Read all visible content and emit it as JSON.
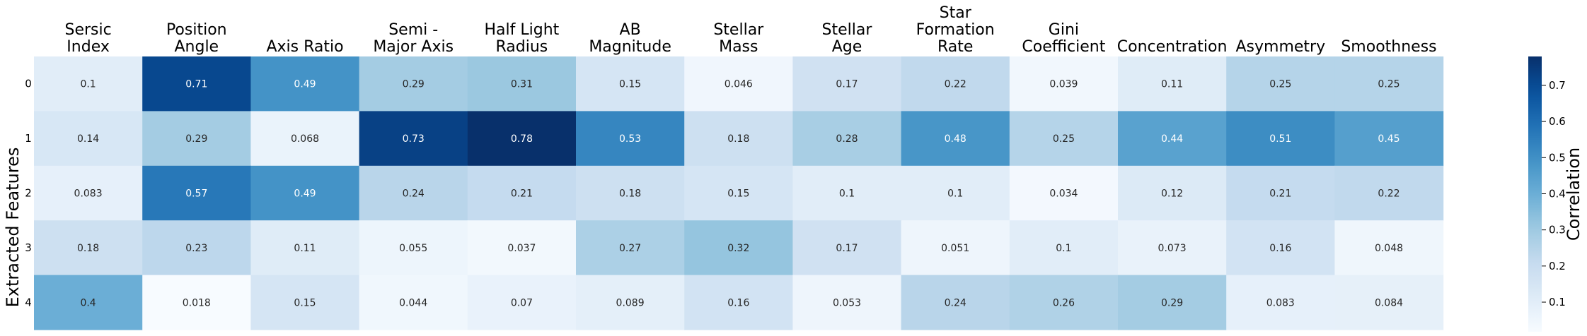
{
  "chart_data": {
    "type": "heatmap",
    "title": "",
    "ylabel": "Extracted Features",
    "xlabel": "",
    "columns": [
      "Sersic Index",
      "Position Angle",
      "Axis Ratio",
      "Semi - Major Axis",
      "Half Light Radius",
      "AB Magnitude",
      "Stellar Mass",
      "Stellar Age",
      "Star Formation Rate",
      "Gini Coefficient",
      "Concentration",
      "Asymmetry",
      "Smoothness"
    ],
    "column_label_lines": [
      [
        "Sersic",
        "Index"
      ],
      [
        "Position",
        "Angle"
      ],
      [
        "Axis Ratio"
      ],
      [
        "Semi -",
        "Major Axis"
      ],
      [
        "Half Light",
        "Radius"
      ],
      [
        "AB",
        "Magnitude"
      ],
      [
        "Stellar",
        "Mass"
      ],
      [
        "Stellar",
        "Age"
      ],
      [
        "Star",
        "Formation",
        "Rate"
      ],
      [
        "Gini",
        "Coefficient"
      ],
      [
        "Concentration"
      ],
      [
        "Asymmetry"
      ],
      [
        "Smoothness"
      ]
    ],
    "rows": [
      "0",
      "1",
      "2",
      "3",
      "4"
    ],
    "values": [
      [
        0.1,
        0.71,
        0.49,
        0.29,
        0.31,
        0.15,
        0.046,
        0.17,
        0.22,
        0.039,
        0.11,
        0.25,
        0.25
      ],
      [
        0.14,
        0.29,
        0.068,
        0.73,
        0.78,
        0.53,
        0.18,
        0.28,
        0.48,
        0.25,
        0.44,
        0.51,
        0.45
      ],
      [
        0.083,
        0.57,
        0.49,
        0.24,
        0.21,
        0.18,
        0.15,
        0.1,
        0.1,
        0.034,
        0.12,
        0.21,
        0.22
      ],
      [
        0.18,
        0.23,
        0.11,
        0.055,
        0.037,
        0.27,
        0.32,
        0.17,
        0.051,
        0.1,
        0.073,
        0.16,
        0.048
      ],
      [
        0.4,
        0.018,
        0.15,
        0.044,
        0.07,
        0.089,
        0.16,
        0.053,
        0.24,
        0.26,
        0.29,
        0.083,
        0.084
      ]
    ],
    "colormap": "Blues",
    "colorbar": {
      "label": "Correlation",
      "range": [
        0.018,
        0.78
      ],
      "ticks": [
        "0.1",
        "0.2",
        "0.3",
        "0.4",
        "0.5",
        "0.6",
        "0.7"
      ]
    }
  }
}
